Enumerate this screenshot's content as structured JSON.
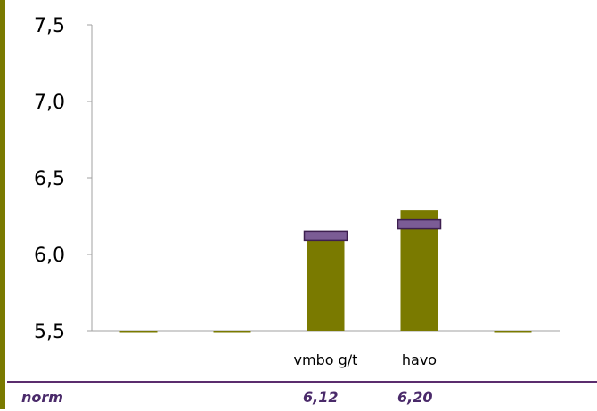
{
  "chart_data": {
    "type": "bar",
    "categories": [
      "",
      "",
      "vmbo g/t",
      "havo",
      ""
    ],
    "values": [
      null,
      null,
      6.09,
      6.29,
      null
    ],
    "norm_markers": [
      null,
      null,
      6.12,
      6.2,
      null
    ],
    "ylim": [
      5.5,
      7.5
    ],
    "yticks": [
      "5,5",
      "6,0",
      "6,5",
      "7,0",
      "7,5"
    ],
    "ytick_values": [
      5.5,
      6.0,
      6.5,
      7.0,
      7.5
    ],
    "bar_color": "#7a7a00",
    "marker_color": "#7b5c95",
    "marker_border": "#3d1f4f",
    "grid": false
  },
  "norm_row": {
    "label": "norm",
    "values": [
      "",
      "",
      "6,12",
      "6,20",
      ""
    ]
  }
}
